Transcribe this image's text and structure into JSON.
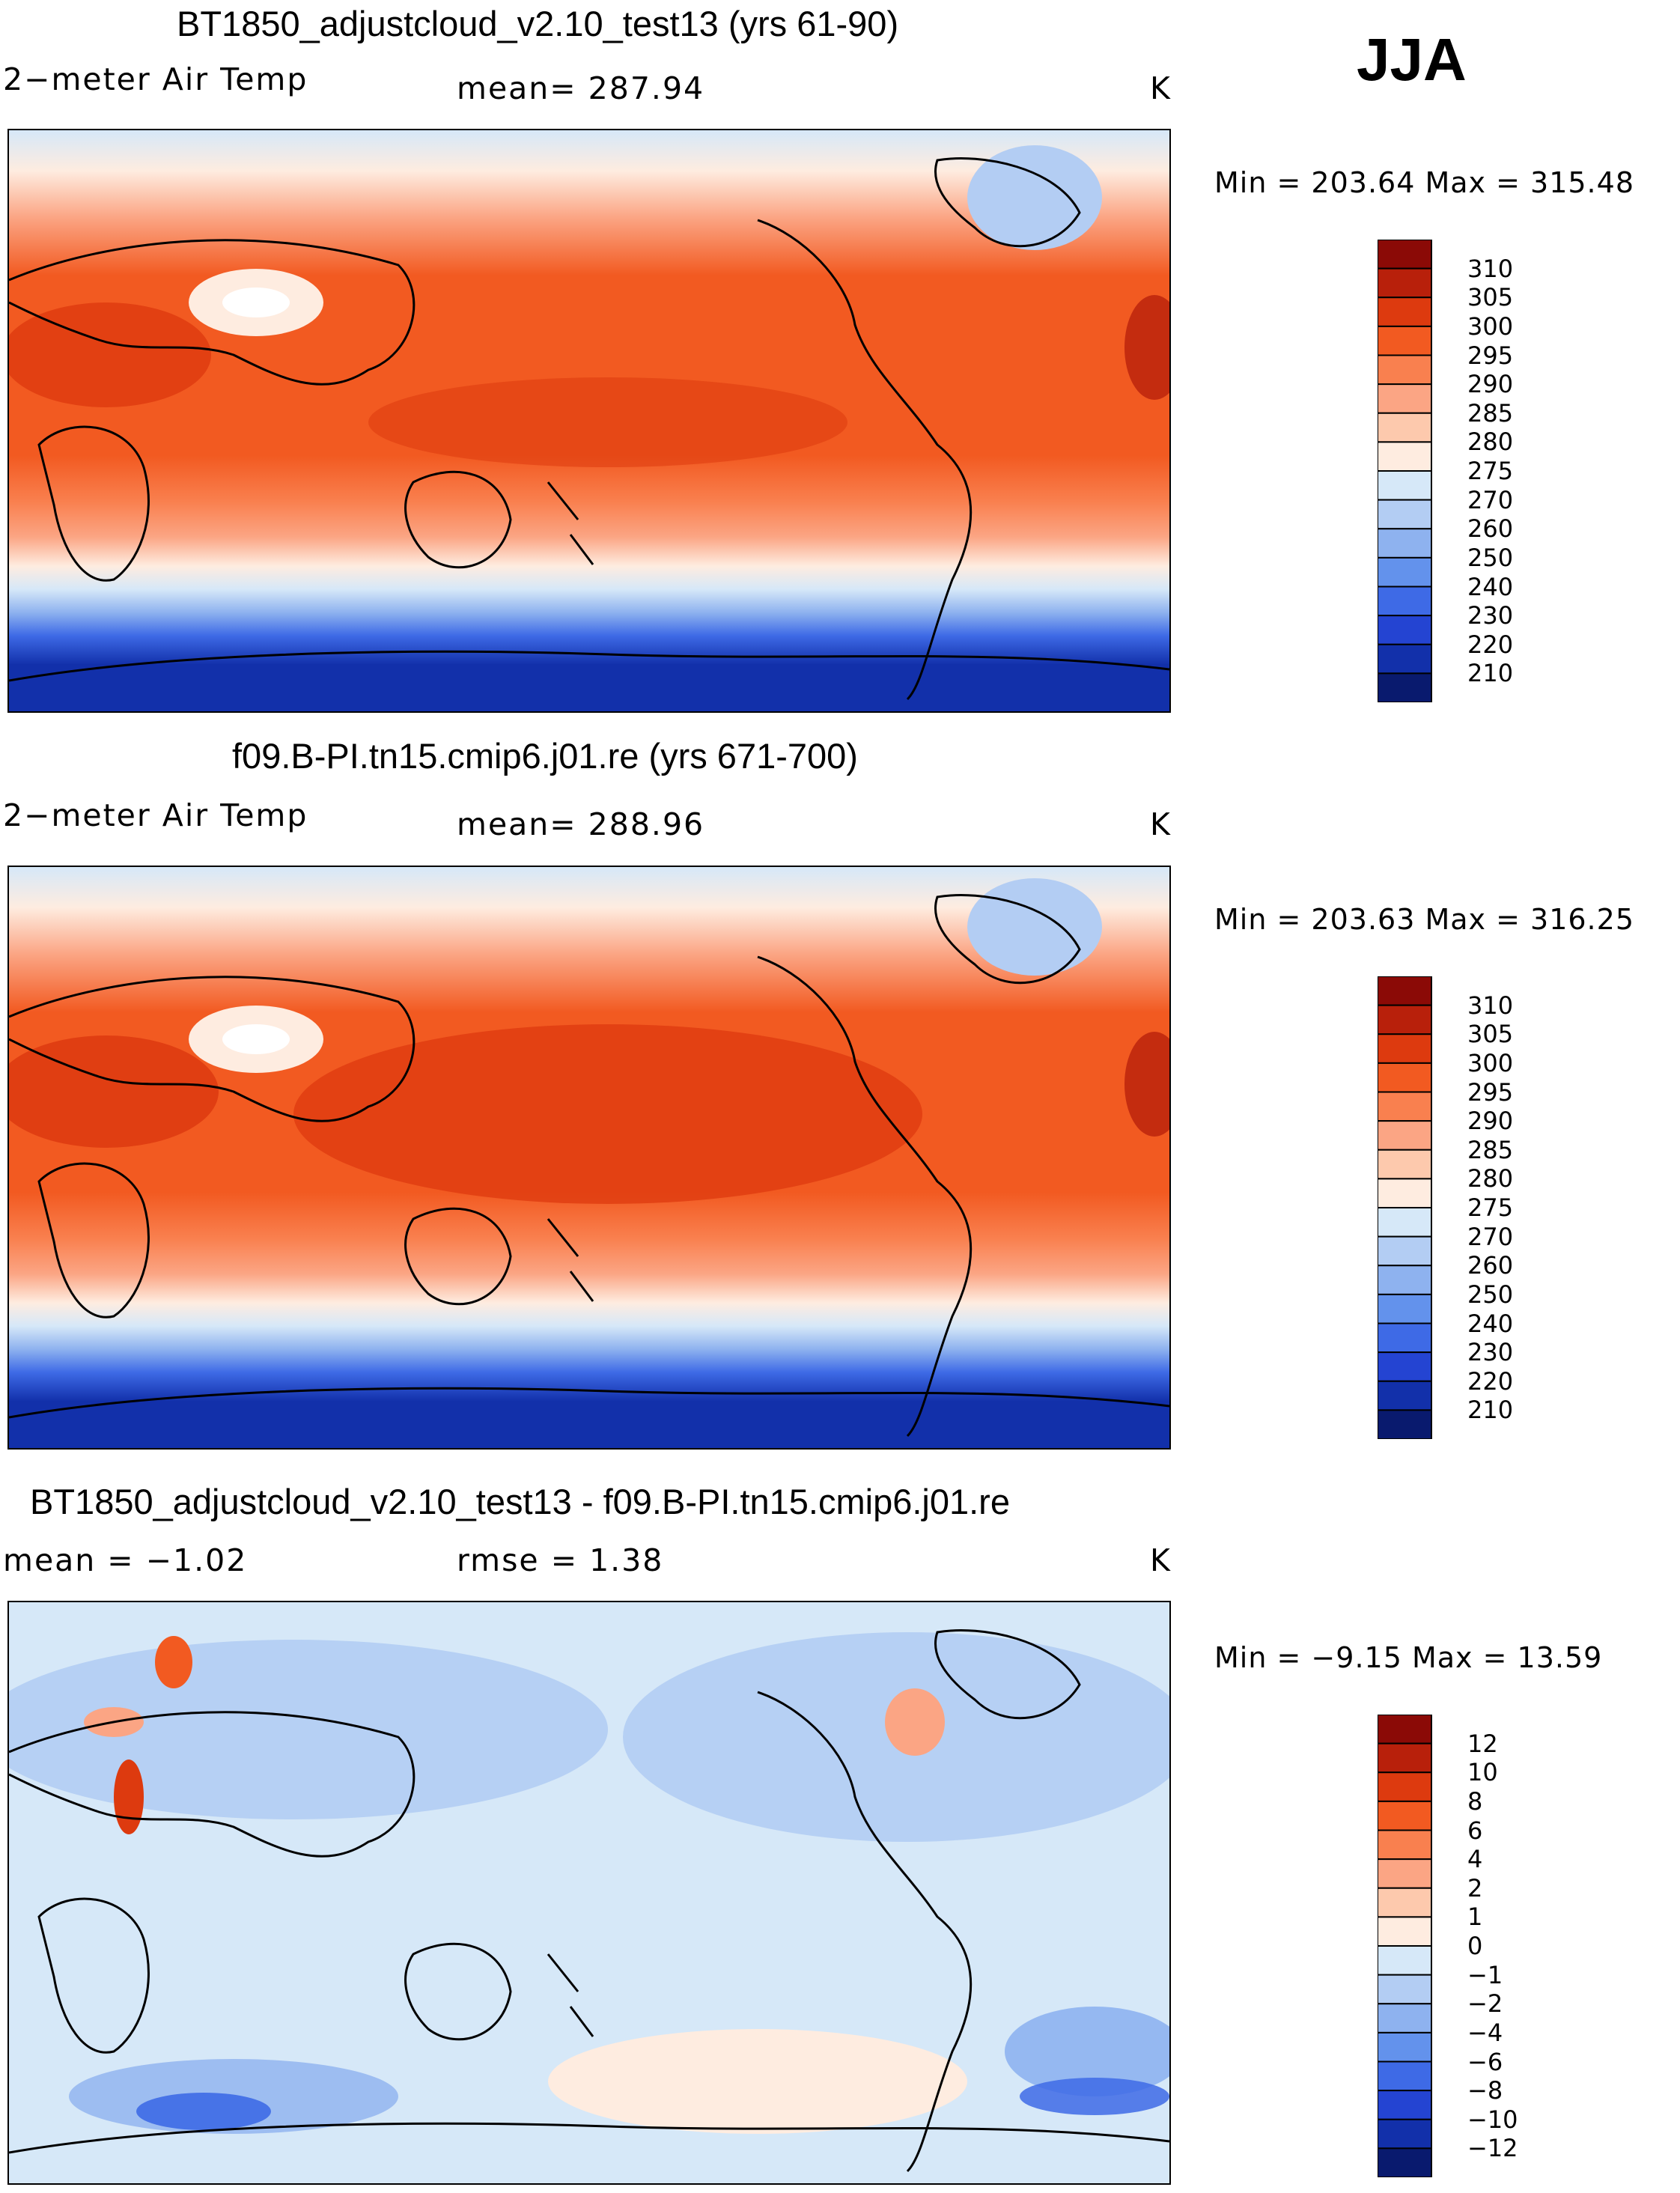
{
  "season": "JJA",
  "panels": [
    {
      "title": "BT1850_adjustcloud_v2.10_test13 (yrs 61-90)",
      "variable": "2−meter Air Temp",
      "stat": "mean=  287.94",
      "units": "K",
      "minmax": "Min  =  203.64  Max  =  315.48"
    },
    {
      "title": "f09.B-PI.tn15.cmip6.j01.re (yrs 671-700)",
      "variable": "2−meter Air Temp",
      "stat": "mean=  288.96",
      "units": "K",
      "minmax": "Min  =  203.63  Max  =  316.25"
    },
    {
      "title": "BT1850_adjustcloud_v2.10_test13 - f09.B-PI.tn15.cmip6.j01.re",
      "variable": "mean  =   −1.02",
      "stat": "rmse  =     1.38",
      "units": "K",
      "minmax": "Min  =   −9.15  Max  =    13.59"
    }
  ],
  "chart_data": [
    {
      "type": "heatmap",
      "title": "BT1850_adjustcloud_v2.10_test13 (yrs 61-90)",
      "variable": "2-meter Air Temp",
      "units": "K",
      "mean": 287.94,
      "min": 203.64,
      "max": 315.48,
      "colorbar_levels": [
        310,
        305,
        300,
        295,
        290,
        285,
        280,
        275,
        270,
        260,
        250,
        240,
        230,
        220,
        210
      ],
      "colorbar_colors": [
        "#8b0a06",
        "#b8200b",
        "#dd3a0f",
        "#f25a21",
        "#f9804f",
        "#fba584",
        "#fdc9ad",
        "#feece0",
        "#d6e8f8",
        "#b3cdf3",
        "#8eb2ef",
        "#6392ec",
        "#3e6ae6",
        "#2444d2",
        "#1230aa",
        "#091a6e"
      ]
    },
    {
      "type": "heatmap",
      "title": "f09.B-PI.tn15.cmip6.j01.re (yrs 671-700)",
      "variable": "2-meter Air Temp",
      "units": "K",
      "mean": 288.96,
      "min": 203.63,
      "max": 316.25,
      "colorbar_levels": [
        310,
        305,
        300,
        295,
        290,
        285,
        280,
        275,
        270,
        260,
        250,
        240,
        230,
        220,
        210
      ],
      "colorbar_colors": [
        "#8b0a06",
        "#b8200b",
        "#dd3a0f",
        "#f25a21",
        "#f9804f",
        "#fba584",
        "#fdc9ad",
        "#feece0",
        "#d6e8f8",
        "#b3cdf3",
        "#8eb2ef",
        "#6392ec",
        "#3e6ae6",
        "#2444d2",
        "#1230aa",
        "#091a6e"
      ]
    },
    {
      "type": "heatmap",
      "title": "BT1850_adjustcloud_v2.10_test13 - f09.B-PI.tn15.cmip6.j01.re",
      "units": "K",
      "mean": -1.02,
      "rmse": 1.38,
      "min": -9.15,
      "max": 13.59,
      "colorbar_levels": [
        12,
        10,
        8,
        6,
        4,
        2,
        1,
        0,
        -1,
        -2,
        -4,
        -6,
        -8,
        -10,
        -12
      ],
      "colorbar_colors": [
        "#8b0a06",
        "#b8200b",
        "#dd3a0f",
        "#f25a21",
        "#f9804f",
        "#fba584",
        "#fdc9ad",
        "#feece0",
        "#d6e8f8",
        "#b3cdf3",
        "#8eb2ef",
        "#6392ec",
        "#3e6ae6",
        "#2444d2",
        "#1230aa",
        "#091a6e"
      ]
    }
  ],
  "colorbar_labels": [
    [
      "310",
      "305",
      "300",
      "295",
      "290",
      "285",
      "280",
      "275",
      "270",
      "260",
      "250",
      "240",
      "230",
      "220",
      "210"
    ],
    [
      "310",
      "305",
      "300",
      "295",
      "290",
      "285",
      "280",
      "275",
      "270",
      "260",
      "250",
      "240",
      "230",
      "220",
      "210"
    ],
    [
      "12",
      "10",
      "8",
      "6",
      "4",
      "2",
      "1",
      "0",
      "−1",
      "−2",
      "−4",
      "−6",
      "−8",
      "−10",
      "−12"
    ]
  ]
}
